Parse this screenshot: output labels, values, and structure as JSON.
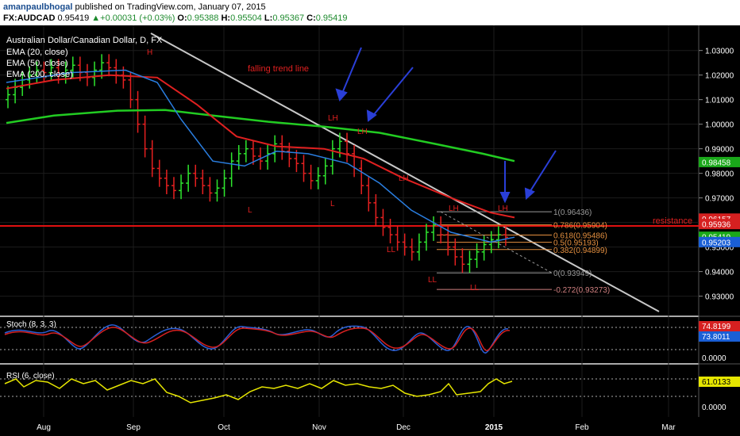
{
  "header": {
    "author": "amanpaulbhogal",
    "published_text": "published on TradingView.com, January 07, 2015",
    "symbol": "FX:AUDCAD",
    "price": "0.95419",
    "change": "+0.00031 (+0.03%)",
    "o_label": "O:",
    "o_value": "0.95388",
    "h_label": "H:",
    "h_value": "0.95504",
    "l_label": "L:",
    "l_value": "0.95367",
    "c_label": "C:",
    "c_value": "0.95419"
  },
  "chart_data": [
    {
      "type": "candlestick",
      "title": "Australian Dollar/Canadian Dollar, D, FX",
      "legend": [
        "EMA (20, close)",
        "EMA (50, close)",
        "EMA (200, close)"
      ],
      "ylim": [
        0.926,
        1.037
      ],
      "y_ticks": [
        "1.03000",
        "1.02000",
        "1.01000",
        "1.00000",
        "0.99000",
        "0.98000",
        "0.97000",
        "0.96000",
        "0.95000",
        "0.94000",
        "0.93000"
      ],
      "x_ticks": [
        "Aug",
        "Sep",
        "Oct",
        "Nov",
        "Dec",
        "2015",
        "Feb",
        "Mar"
      ],
      "price_tags": [
        {
          "value": "0.98458",
          "color": "#1aa81a"
        },
        {
          "value": "0.96157",
          "color": "#d62020"
        },
        {
          "value": "0.95936",
          "color": "#d62020"
        },
        {
          "value": "0.95419",
          "color": "#1aa81a"
        },
        {
          "value": "0.95203",
          "color": "#1a5fd6"
        }
      ],
      "fib_levels": [
        {
          "label": "1(0.96436)",
          "value": 0.96436
        },
        {
          "label": "0.786(0.95904)",
          "value": 0.95904
        },
        {
          "label": "0.618(0.95486)",
          "value": 0.95486
        },
        {
          "label": "0.5(0.95193)",
          "value": 0.95193
        },
        {
          "label": "0.382(0.94899)",
          "value": 0.94899
        },
        {
          "label": "0(0.93949)",
          "value": 0.93949
        },
        {
          "label": "-0.272(0.93273)",
          "value": 0.93273
        }
      ],
      "resistance": {
        "label": "resistance",
        "value": 0.9595
      },
      "trend_line_label": "falling trend line",
      "swing_labels": [
        "H",
        "L",
        "L",
        "LH",
        "LH",
        "LH",
        "LL",
        "LL",
        "LH",
        "LL",
        "LH"
      ],
      "ema200": [
        [
          0,
          1.0005
        ],
        [
          60,
          1.0035
        ],
        [
          140,
          1.0055
        ],
        [
          200,
          1.0058
        ],
        [
          260,
          1.0035
        ],
        [
          330,
          1.001
        ],
        [
          400,
          0.999
        ],
        [
          470,
          0.9965
        ],
        [
          540,
          0.992
        ],
        [
          600,
          0.988
        ],
        [
          640,
          0.985
        ]
      ],
      "ema50": [
        [
          0,
          1.0145
        ],
        [
          60,
          1.018
        ],
        [
          130,
          1.02
        ],
        [
          190,
          1.019
        ],
        [
          240,
          1.008
        ],
        [
          290,
          0.995
        ],
        [
          340,
          0.991
        ],
        [
          400,
          0.99
        ],
        [
          450,
          0.986
        ],
        [
          500,
          0.978
        ],
        [
          560,
          0.97
        ],
        [
          610,
          0.964
        ],
        [
          640,
          0.962
        ]
      ],
      "ema20": [
        [
          0,
          1.017
        ],
        [
          80,
          1.021
        ],
        [
          150,
          1.022
        ],
        [
          190,
          1.017
        ],
        [
          220,
          1.002
        ],
        [
          260,
          0.985
        ],
        [
          300,
          0.983
        ],
        [
          340,
          0.989
        ],
        [
          380,
          0.988
        ],
        [
          430,
          0.984
        ],
        [
          470,
          0.976
        ],
        [
          510,
          0.965
        ],
        [
          560,
          0.956
        ],
        [
          610,
          0.952
        ],
        [
          640,
          0.954
        ]
      ],
      "closes": [
        1.012,
        1.015,
        1.018,
        1.02,
        1.022,
        1.021,
        1.023,
        1.02,
        1.022,
        1.024,
        1.021,
        1.019,
        1.022,
        1.025,
        1.023,
        1.02,
        1.018,
        1.01,
        1.0,
        0.99,
        0.982,
        0.978,
        0.975,
        0.973,
        0.976,
        0.98,
        0.978,
        0.975,
        0.972,
        0.974,
        0.978,
        0.985,
        0.988,
        0.99,
        0.987,
        0.985,
        0.988,
        0.992,
        0.989,
        0.986,
        0.984,
        0.98,
        0.977,
        0.979,
        0.983,
        0.99,
        0.993,
        0.988,
        0.982,
        0.975,
        0.968,
        0.962,
        0.958,
        0.955,
        0.952,
        0.95,
        0.948,
        0.952,
        0.956,
        0.959,
        0.955,
        0.95,
        0.946,
        0.943,
        0.945,
        0.948,
        0.951,
        0.953,
        0.955,
        0.954
      ]
    },
    {
      "type": "line",
      "title": "Stoch (8, 3, 3)",
      "y_ticks": [
        "0.0000"
      ],
      "value_tags": [
        {
          "value": "74.8199",
          "color": "#d62020"
        },
        {
          "value": "73.8011",
          "color": "#1a5fd6"
        }
      ]
    },
    {
      "type": "line",
      "title": "RSI (6, close)",
      "y_ticks": [
        "0.0000"
      ],
      "value_tags": [
        {
          "value": "61.0133",
          "color": "#e6e600"
        }
      ]
    }
  ]
}
